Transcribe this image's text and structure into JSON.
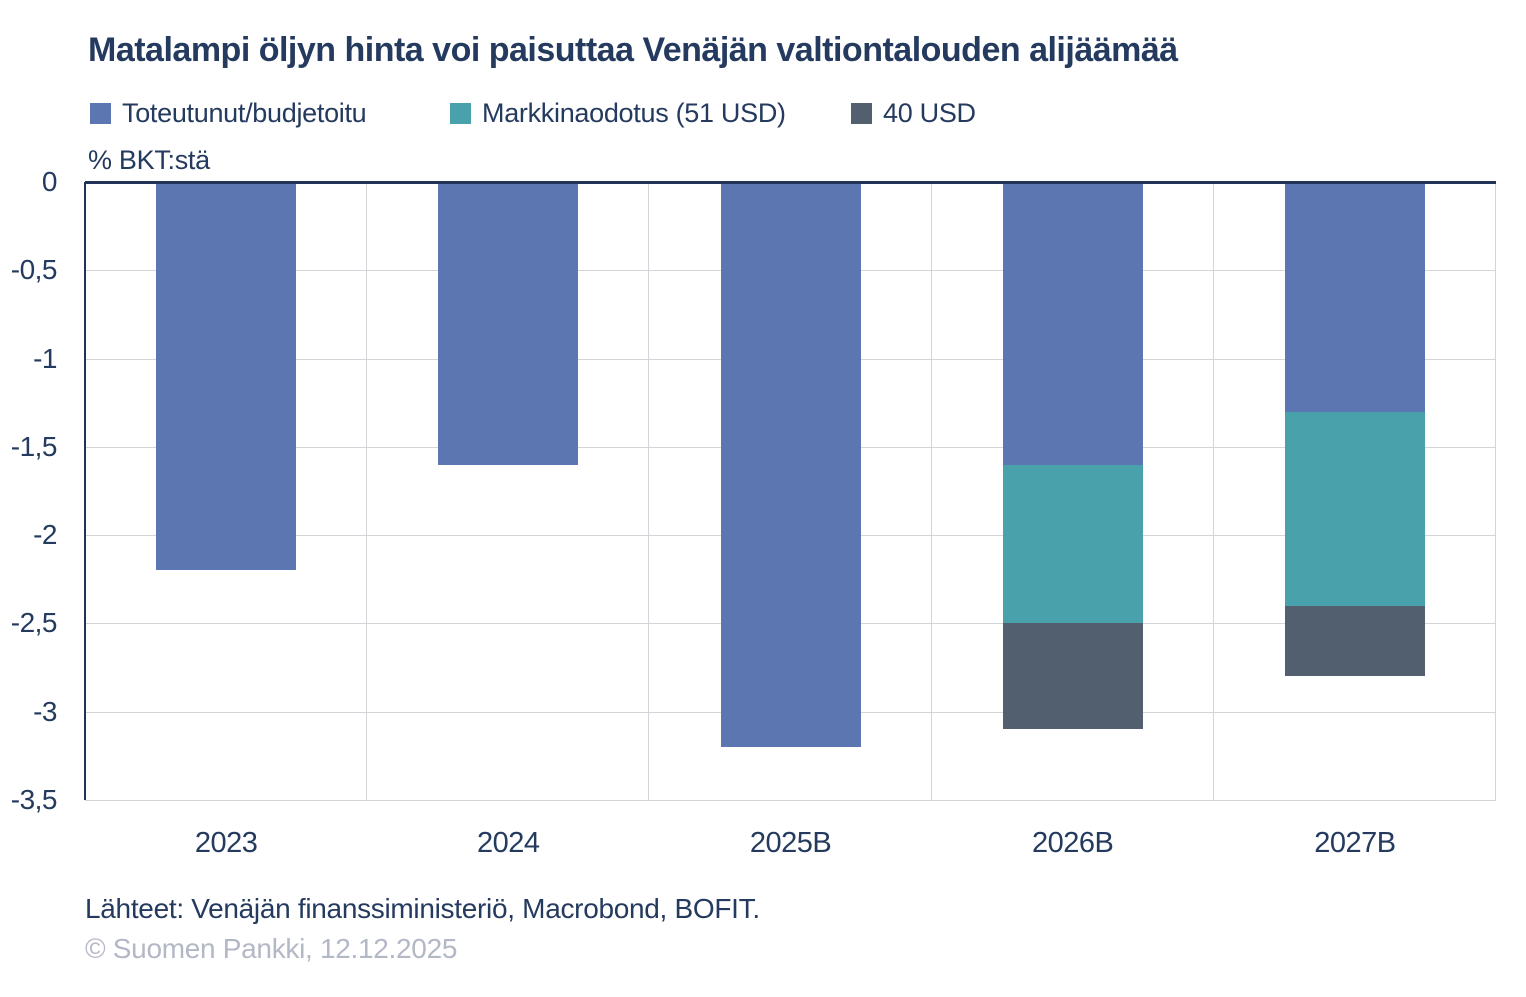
{
  "footer": {
    "sources": "Lähteet: Venäjän finanssiministeriö, Macrobond, BOFIT.",
    "copyright": "© Suomen Pankki, 12.12.2025"
  },
  "colors": {
    "background": "#ffffff",
    "text": "#243a5e",
    "axis_line": "#22335a",
    "grid_line": "#d3d5da",
    "copyright_text": "#b3b8c6"
  },
  "chart_data": {
    "type": "bar",
    "stacked": true,
    "orientation": "vertical",
    "title": "Matalampi öljyn hinta voi paisuttaa Venäjän valtiontalouden alijäämää",
    "xlabel": "",
    "ylabel": "% BKT:stä",
    "ylim": [
      -3.5,
      0
    ],
    "grid": true,
    "legend_position": "top",
    "categories": [
      "2023",
      "2024",
      "2025B",
      "2026B",
      "2027B"
    ],
    "yticks": {
      "values": [
        0,
        -0.5,
        -1,
        -1.5,
        -2,
        -2.5,
        -3,
        -3.5
      ],
      "labels": [
        "0",
        "-0,5",
        "-1",
        "-1,5",
        "-2",
        "-2,5",
        "-3",
        "-3,5"
      ]
    },
    "series": [
      {
        "name": "Toteutunut/budjetoitu",
        "color": "#5c76b2",
        "values": [
          -2.2,
          -1.6,
          -3.2,
          -1.6,
          -1.3
        ]
      },
      {
        "name": "Markkinaodotus (51 USD)",
        "color": "#49a2ab",
        "values": [
          0,
          0,
          0,
          -0.9,
          -1.1
        ]
      },
      {
        "name": "40 USD",
        "color": "#525f6e",
        "values": [
          0,
          0,
          0,
          -0.6,
          -0.4
        ]
      }
    ],
    "stack_totals": [
      -2.2,
      -1.6,
      -3.2,
      -3.1,
      -2.8
    ]
  }
}
